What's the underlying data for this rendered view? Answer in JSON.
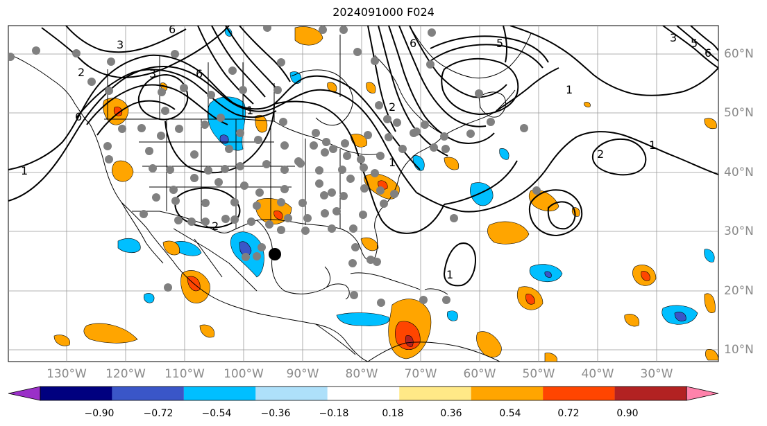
{
  "title": "2024091000 F024",
  "map": {
    "lon_labels": [
      "130°W",
      "120°W",
      "110°W",
      "100°W",
      "90°W",
      "80°W",
      "70°W",
      "60°W",
      "50°W",
      "40°W",
      "30°W"
    ],
    "lat_labels": [
      "60°N",
      "50°N",
      "40°N",
      "30°N",
      "20°N",
      "10°N"
    ],
    "contour_labels": [
      "6",
      "3",
      "2",
      "6",
      "1",
      "1",
      "6",
      "3",
      "2",
      "2",
      "6",
      "5",
      "1",
      "1",
      "1",
      "2",
      "1",
      "3",
      "5",
      "6"
    ],
    "colors": {
      "contour": "#000000",
      "grid": "#999999",
      "station": "#808080",
      "marker": "#000000"
    }
  },
  "colorbar": {
    "colors": [
      "#9a30c8",
      "#00007f",
      "#3a56c8",
      "#00bfff",
      "#aee0fa",
      "#ffffff",
      "#ffe987",
      "#ffa500",
      "#ff4500",
      "#b22222",
      "#ff82ab"
    ],
    "tick_labels": [
      "−0.90",
      "−0.72",
      "−0.54",
      "−0.36",
      "−0.18",
      "0.18",
      "0.36",
      "0.54",
      "0.72",
      "0.90"
    ]
  }
}
